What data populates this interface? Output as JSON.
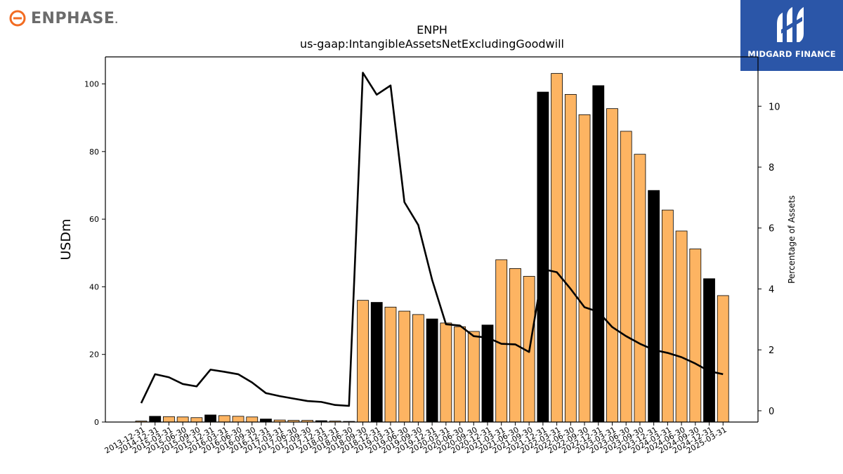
{
  "logos": {
    "left_icon": "enphase-e-icon",
    "left_text": "ENPHASE",
    "left_dot": ".",
    "right_icon": "midgard-m-icon",
    "right_text": "MIDGARD FINANCE"
  },
  "colors": {
    "bar_default": "#fdb462",
    "bar_highlight": "#000000",
    "line": "#000000",
    "enphase_orange": "#f26b21",
    "midgard_blue": "#2b56a8"
  },
  "chart_data": {
    "type": "bar",
    "title": "ENPH",
    "subtitle": "us-gaap:IntangibleAssetsNetExcludingGoodwill",
    "ylabel": "USDm",
    "y2label": "Percentage of Assets",
    "ylim": [
      0,
      108
    ],
    "y2lim": [
      -0.37,
      11.62
    ],
    "yticks": [
      0,
      20,
      40,
      60,
      80,
      100
    ],
    "y2ticks": [
      0,
      2,
      4,
      6,
      8,
      10
    ],
    "grid": false,
    "categories": [
      "2013-12-31",
      "2014-12-31",
      "2015-03-31",
      "2015-06-30",
      "2015-09-30",
      "2015-12-31",
      "2016-03-31",
      "2016-06-30",
      "2016-09-30",
      "2016-12-31",
      "2017-03-31",
      "2017-06-30",
      "2017-09-30",
      "2017-12-31",
      "2018-03-31",
      "2018-06-30",
      "2018-09-30",
      "2018-12-31",
      "2019-03-31",
      "2019-06-30",
      "2019-09-30",
      "2019-12-31",
      "2020-03-31",
      "2020-06-30",
      "2020-09-30",
      "2020-12-31",
      "2021-03-31",
      "2021-06-30",
      "2021-09-30",
      "2021-12-31",
      "2022-03-31",
      "2022-06-30",
      "2022-09-30",
      "2022-12-31",
      "2023-03-31",
      "2023-06-30",
      "2023-09-30",
      "2023-12-31",
      "2024-03-31",
      "2024-06-30",
      "2024-09-30",
      "2024-12-31",
      "2025-03-31"
    ],
    "series": [
      {
        "type": "bar",
        "axis": "left",
        "values": [
          0.3,
          1.7,
          1.6,
          1.5,
          1.3,
          2.1,
          1.9,
          1.7,
          1.5,
          0.9,
          0.6,
          0.5,
          0.5,
          0.4,
          0.3,
          0.2,
          36.0,
          35.4,
          34.0,
          32.8,
          31.8,
          30.5,
          29.3,
          28.2,
          26.8,
          28.7,
          48.0,
          45.4,
          43.1,
          97.6,
          103.1,
          96.9,
          90.9,
          99.5,
          92.7,
          86.0,
          79.2,
          68.5,
          62.7,
          56.5,
          51.2,
          42.4,
          37.4
        ],
        "highlight": [
          false,
          true,
          false,
          false,
          false,
          true,
          false,
          false,
          false,
          true,
          false,
          false,
          false,
          true,
          false,
          false,
          false,
          true,
          false,
          false,
          false,
          true,
          false,
          false,
          false,
          true,
          false,
          false,
          false,
          true,
          false,
          false,
          false,
          true,
          false,
          false,
          false,
          true,
          false,
          false,
          false,
          true,
          false
        ]
      },
      {
        "type": "line",
        "axis": "right",
        "values": [
          0.25,
          1.2,
          1.1,
          0.88,
          0.8,
          1.35,
          1.28,
          1.2,
          0.93,
          0.58,
          0.48,
          0.4,
          0.32,
          0.29,
          0.19,
          0.16,
          11.1,
          10.38,
          10.68,
          6.85,
          6.1,
          4.3,
          2.84,
          2.8,
          2.45,
          2.4,
          2.2,
          2.18,
          1.93,
          4.65,
          4.55,
          4.0,
          3.4,
          3.25,
          2.75,
          2.45,
          2.2,
          2.0,
          1.9,
          1.76,
          1.55,
          1.3,
          1.2
        ]
      }
    ]
  }
}
